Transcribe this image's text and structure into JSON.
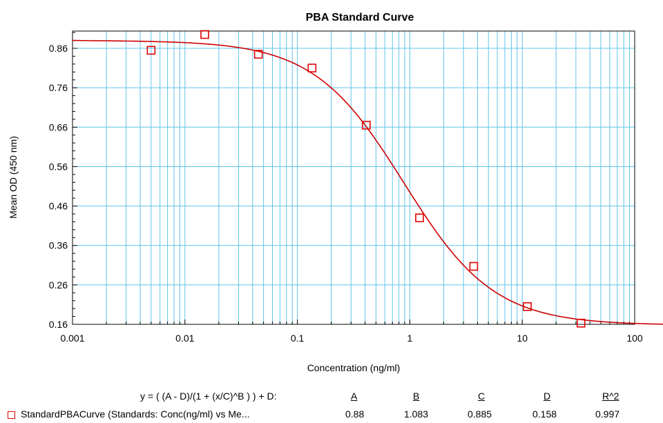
{
  "chart_data": {
    "type": "scatter",
    "title": "PBA Standard Curve",
    "xlabel": "Concentration (ng/ml)",
    "ylabel": "Mean OD (450 nm)",
    "x_scale": "log",
    "xlim": [
      0.001,
      100
    ],
    "ylim": [
      0.16,
      0.895
    ],
    "x_ticks": [
      "0.001",
      "0.01",
      "0.1",
      "1",
      "10",
      "100"
    ],
    "y_ticks": [
      "0.16",
      "0.26",
      "0.36",
      "0.46",
      "0.56",
      "0.66",
      "0.76",
      "0.86"
    ],
    "grid": true,
    "series": [
      {
        "name": "StandardPBACurve (Standards: Conc(ng/ml) vs Me...",
        "marker": "open-square",
        "color": "#e00000",
        "points": [
          {
            "x": 0.005,
            "y": 0.855
          },
          {
            "x": 0.015,
            "y": 0.895
          },
          {
            "x": 0.045,
            "y": 0.845
          },
          {
            "x": 0.135,
            "y": 0.81
          },
          {
            "x": 0.41,
            "y": 0.665
          },
          {
            "x": 1.22,
            "y": 0.43
          },
          {
            "x": 3.7,
            "y": 0.307
          },
          {
            "x": 11.1,
            "y": 0.205
          },
          {
            "x": 33.3,
            "y": 0.163
          }
        ]
      }
    ],
    "fit": {
      "equation": "y = ( (A - D)/(1 + (x/C)^B ) ) + D:",
      "headers": [
        "A",
        "B",
        "C",
        "D",
        "R^2"
      ],
      "values": [
        "0.88",
        "1.083",
        "0.885",
        "0.158",
        "0.997"
      ],
      "A": 0.88,
      "B": 1.083,
      "C": 0.885,
      "D": 0.158,
      "line_color": "#cc0000"
    },
    "grid_color": "#5fc4ea"
  }
}
